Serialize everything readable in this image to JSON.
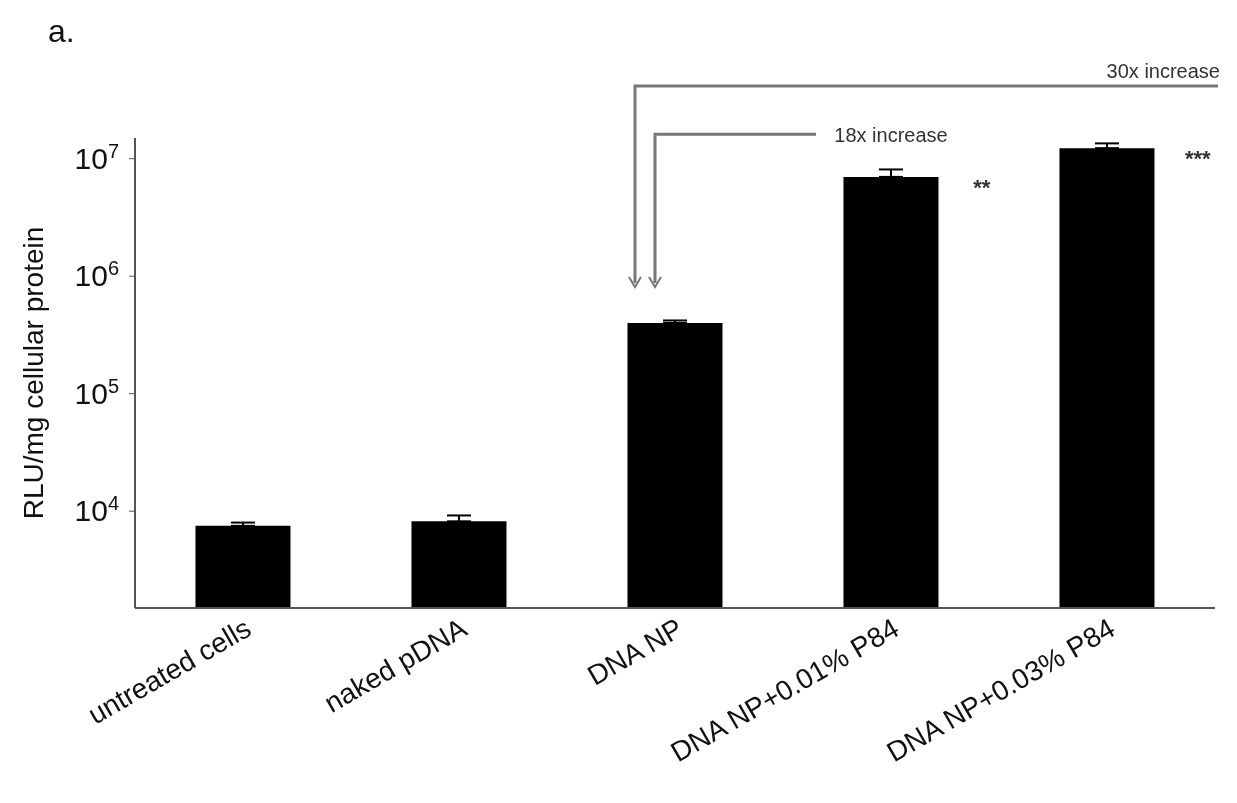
{
  "chart_data": {
    "type": "bar",
    "title": "a.",
    "ylabel": "RLU/mg cellular protein",
    "categories": [
      "untreated cells",
      "naked pDNA",
      "DNA NP",
      "DNA NP+0.01% P84",
      "DNA NP+0.03% P84"
    ],
    "values": [
      7500,
      8200,
      400000,
      7000000,
      12300000
    ],
    "errors": [
      [
        7500,
        8000
      ],
      [
        8200,
        9200
      ],
      [
        400000,
        420000
      ],
      [
        7000000,
        8100000
      ],
      [
        12300000,
        13500000
      ]
    ],
    "color": "#000000",
    "log": true,
    "ylim": [
      1500,
      15000000
    ],
    "yticks": [
      {
        "value": 10000,
        "label": "10$^{4}$"
      },
      {
        "value": 100000,
        "label": "10$^{5}$"
      },
      {
        "value": 1000000,
        "label": "10$^{6}$"
      },
      {
        "value": 10000000,
        "label": "10$^{7}$"
      }
    ],
    "annotations": [
      "18x increase",
      "30x increase",
      "**",
      "***"
    ]
  }
}
